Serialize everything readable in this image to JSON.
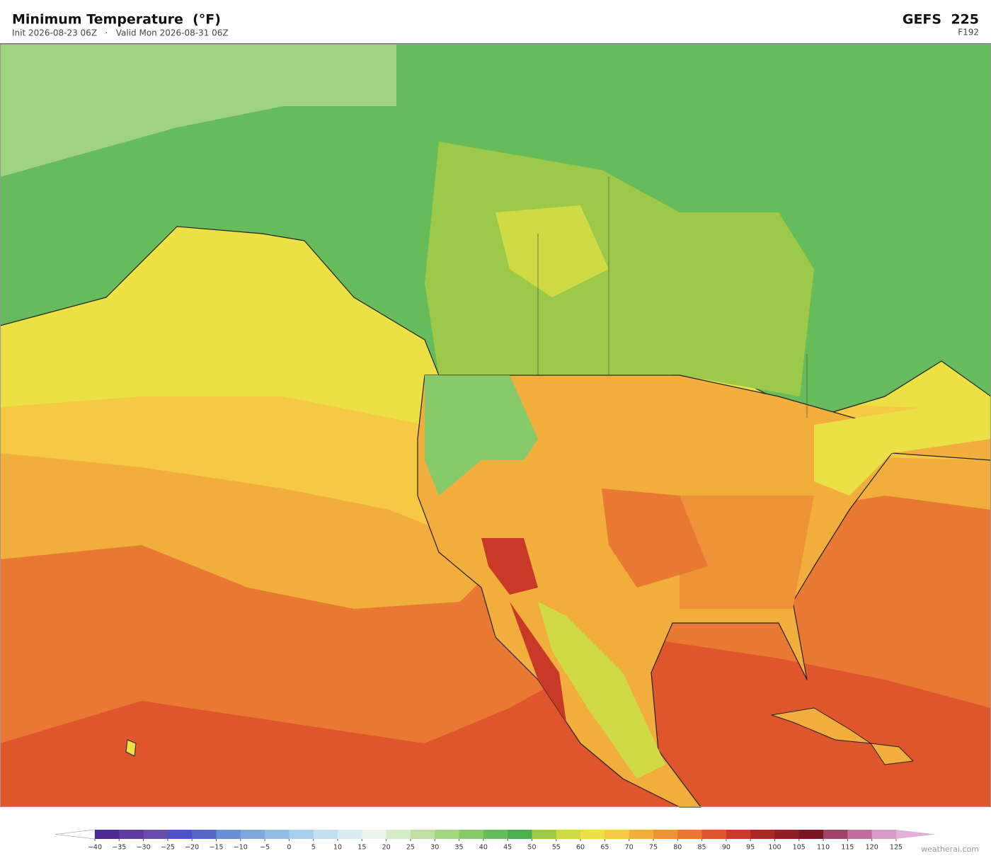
{
  "header": {
    "title": "Minimum Temperature  (°F)",
    "subtitle": "Init 2026-08-23 06Z   ·   Valid Mon 2026-08-31 06Z",
    "model": "GEFS  225",
    "forecast_hour": "F192"
  },
  "colorbar": {
    "ticks": [
      {
        "value": -40,
        "label": "−40"
      },
      {
        "value": -35,
        "label": "−35"
      },
      {
        "value": -30,
        "label": "−30"
      },
      {
        "value": -25,
        "label": "−25"
      },
      {
        "value": -20,
        "label": "−20"
      },
      {
        "value": -15,
        "label": "−15"
      },
      {
        "value": -10,
        "label": "−10"
      },
      {
        "value": -5,
        "label": "−5"
      },
      0,
      5,
      10,
      15,
      20,
      25,
      30,
      35,
      40,
      45,
      50,
      55,
      60,
      65,
      70,
      75,
      80,
      85,
      90,
      95,
      100,
      105,
      110,
      115,
      120,
      125
    ],
    "colors": [
      "#4b2a96",
      "#5e3aa3",
      "#6a4bb0",
      "#4d52c4",
      "#5468c8",
      "#6a8fd4",
      "#7ea7dc",
      "#94bde6",
      "#a8d0ec",
      "#c2e0f0",
      "#d9ecf3",
      "#e8f4ec",
      "#d6ecc8",
      "#bfe0a2",
      "#a3d67f",
      "#86ca6a",
      "#66bb5a",
      "#4caf4f",
      "#9cc94a",
      "#cfda45",
      "#ece144",
      "#f5c943",
      "#f2ae3d",
      "#ef9338",
      "#e87832",
      "#df552c",
      "#c83a27",
      "#a82a24",
      "#8f1f22",
      "#7a1520",
      "#a0446a",
      "#c06e9e",
      "#d699c8"
    ],
    "over_color": "#e2b0da"
  },
  "watermark": "weatherai.com"
}
